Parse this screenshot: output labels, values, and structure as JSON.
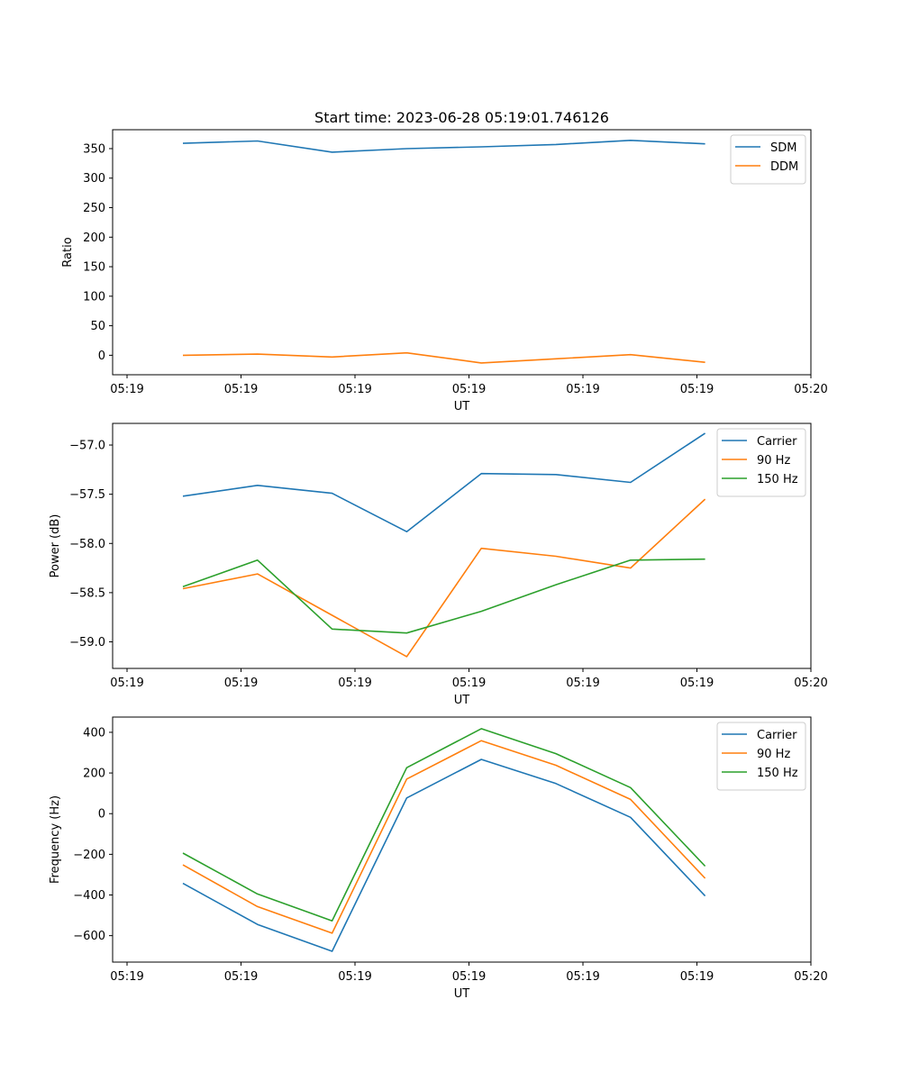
{
  "chart_data": [
    {
      "type": "line",
      "title": "Start time: 2023-06-28 05:19:01.746126",
      "xlabel": "UT",
      "ylabel": "Ratio",
      "xtick_labels": [
        "05:19",
        "05:19",
        "05:19",
        "05:19",
        "05:19",
        "05:19",
        "05:20"
      ],
      "ylim": [
        -33,
        382
      ],
      "yticks": [
        0,
        50,
        100,
        150,
        200,
        250,
        300,
        350
      ],
      "ytick_labels": [
        "0",
        "50",
        "100",
        "150",
        "200",
        "250",
        "300",
        "350"
      ],
      "legend_position": "top-right",
      "series": [
        {
          "name": "SDM",
          "color": "#1f77b4",
          "values": [
            359,
            363,
            344,
            350,
            353,
            357,
            364,
            358
          ]
        },
        {
          "name": "DDM",
          "color": "#ff7f0e",
          "values": [
            0,
            2,
            -3,
            4,
            -13,
            -6,
            1,
            -12
          ]
        }
      ]
    },
    {
      "type": "line",
      "title": "",
      "xlabel": "UT",
      "ylabel": "Power (dB)",
      "xtick_labels": [
        "05:19",
        "05:19",
        "05:19",
        "05:19",
        "05:19",
        "05:19",
        "05:20"
      ],
      "ylim": [
        -59.27,
        -56.78
      ],
      "yticks": [
        -59.0,
        -58.5,
        -58.0,
        -57.5,
        -57.0
      ],
      "ytick_labels": [
        "−59.0",
        "−58.5",
        "−58.0",
        "−57.5",
        "−57.0"
      ],
      "legend_position": "top-right",
      "series": [
        {
          "name": "Carrier",
          "color": "#1f77b4",
          "values": [
            -57.52,
            -57.41,
            -57.49,
            -57.88,
            -57.29,
            -57.3,
            -57.38,
            -56.88
          ]
        },
        {
          "name": "90 Hz",
          "color": "#ff7f0e",
          "values": [
            -58.46,
            -58.31,
            -58.73,
            -59.15,
            -58.05,
            -58.13,
            -58.25,
            -57.55
          ]
        },
        {
          "name": "150 Hz",
          "color": "#2ca02c",
          "values": [
            -58.44,
            -58.17,
            -58.87,
            -58.91,
            -58.69,
            -58.42,
            -58.17,
            -58.16
          ]
        }
      ]
    },
    {
      "type": "line",
      "title": "",
      "xlabel": "UT",
      "ylabel": "Frequency (Hz)",
      "xtick_labels": [
        "05:19",
        "05:19",
        "05:19",
        "05:19",
        "05:19",
        "05:19",
        "05:20"
      ],
      "ylim": [
        -730,
        475
      ],
      "yticks": [
        -600,
        -400,
        -200,
        0,
        200,
        400
      ],
      "ytick_labels": [
        "−600",
        "−400",
        "−200",
        "0",
        "200",
        "400"
      ],
      "legend_position": "top-right",
      "series": [
        {
          "name": "Carrier",
          "color": "#1f77b4",
          "values": [
            -343,
            -545,
            -677,
            77,
            267,
            148,
            -18,
            -405
          ]
        },
        {
          "name": "90 Hz",
          "color": "#ff7f0e",
          "values": [
            -252,
            -457,
            -588,
            170,
            359,
            238,
            70,
            -318
          ]
        },
        {
          "name": "150 Hz",
          "color": "#2ca02c",
          "values": [
            -194,
            -395,
            -527,
            226,
            418,
            295,
            128,
            -258
          ]
        }
      ]
    }
  ]
}
